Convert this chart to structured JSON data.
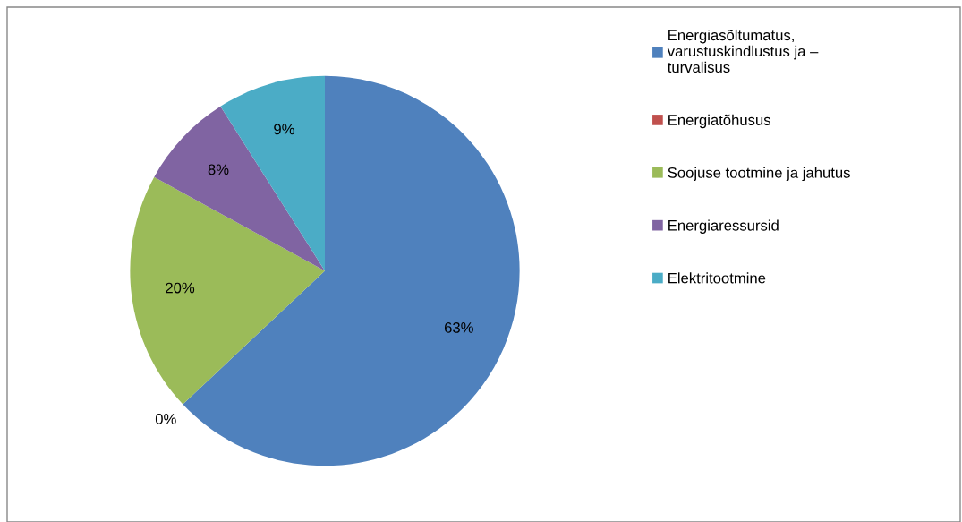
{
  "chart_data": {
    "type": "pie",
    "categories": [
      "Energiasõltumatus,\nvarustuskindlustus ja –\nturvalisus",
      "Energiatõhusus",
      "Soojuse tootmine ja jahutus",
      "Energiaressursid",
      "Elektritootmine"
    ],
    "values": [
      63,
      0,
      20,
      8,
      9
    ],
    "colors": [
      "#4f81bd",
      "#c0504d",
      "#9bbb59",
      "#8064a2",
      "#4bacc6"
    ],
    "value_labels": [
      "63%",
      "0%",
      "20%",
      "8%",
      "9%"
    ],
    "legend": "right"
  }
}
